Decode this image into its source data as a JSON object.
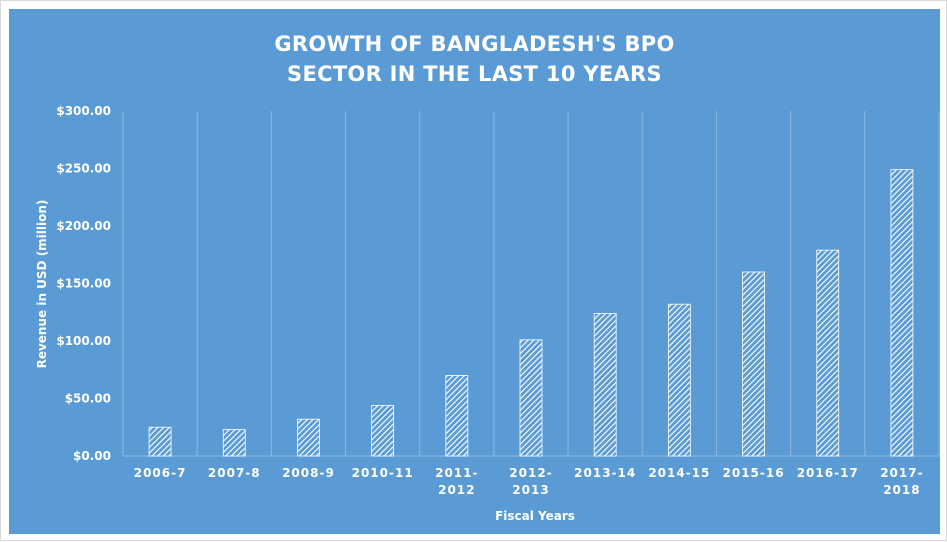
{
  "chart_data": {
    "type": "bar",
    "title": "GROWTH OF BANGLADESH'S BPO SECTOR IN THE LAST 10 YEARS",
    "xlabel": "Fiscal Years",
    "ylabel": "Revenue in USD (million)",
    "categories": [
      "2006-7",
      "2007-8",
      "2008-9",
      "2010-11",
      "2011-2012",
      "2012-2013",
      "2013-14",
      "2014-15",
      "2015-16",
      "2016-17",
      "2017-2018"
    ],
    "category_lines": [
      [
        "2006-7"
      ],
      [
        "2007-8"
      ],
      [
        "2008-9"
      ],
      [
        "2010-11"
      ],
      [
        "2011-",
        "2012"
      ],
      [
        "2012-",
        "2013"
      ],
      [
        "2013-14"
      ],
      [
        "2014-15"
      ],
      [
        "2015-16"
      ],
      [
        "2016-17"
      ],
      [
        "2017-",
        "2018"
      ]
    ],
    "values": [
      25,
      23,
      32,
      44,
      70,
      101,
      124,
      132,
      160,
      179,
      249
    ],
    "ylim": [
      0,
      300
    ],
    "yticks": [
      0,
      50,
      100,
      150,
      200,
      250,
      300
    ],
    "ytick_labels": [
      "$0.00",
      "$50.00",
      "$100.00",
      "$150.00",
      "$200.00",
      "$250.00",
      "$300.00"
    ],
    "grid": "vertical category separators",
    "legend": "none",
    "bar_fill": "white diagonal hatch",
    "colors": {
      "background": "#5b9bd5",
      "text": "#ffffff",
      "gridline": "#8db7e2"
    }
  }
}
